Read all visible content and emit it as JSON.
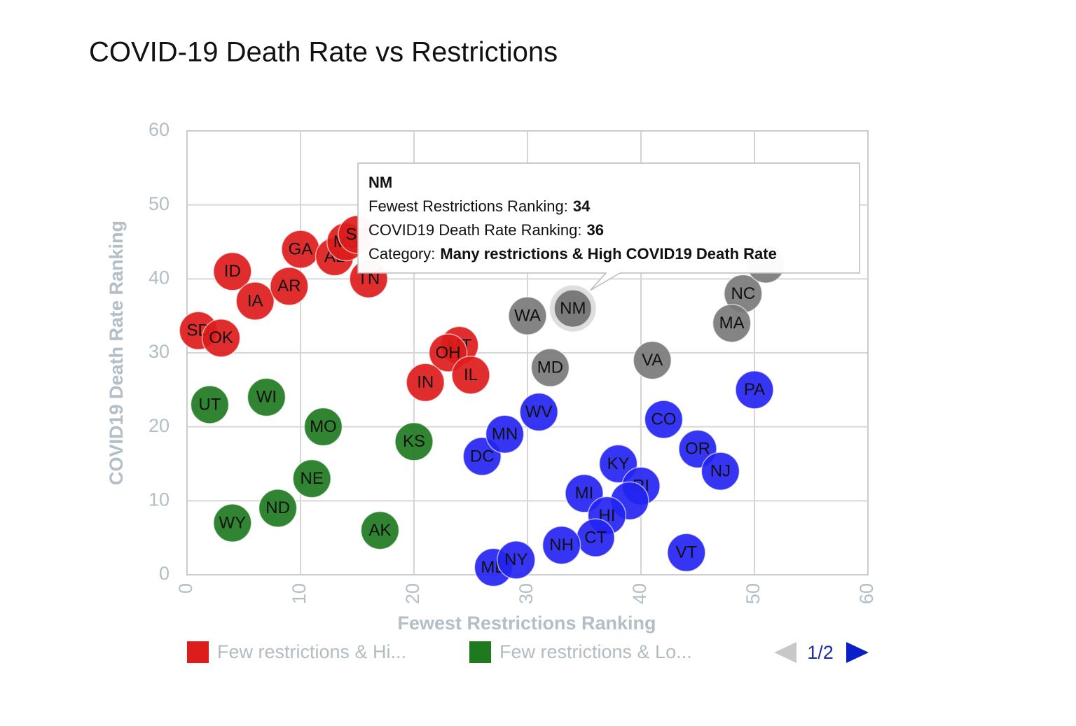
{
  "chart_data": {
    "type": "scatter",
    "title": "COVID-19 Death Rate vs Restrictions",
    "x_label": "Fewest Restrictions Ranking",
    "y_label": "COVID19 Death Rate Ranking",
    "xlim": [
      0,
      60
    ],
    "ylim": [
      0,
      60
    ],
    "xticks": [
      0,
      10,
      20,
      30,
      40,
      50,
      60
    ],
    "yticks": [
      0,
      10,
      20,
      30,
      40,
      50,
      60
    ],
    "grid": true,
    "series": [
      {
        "name": "Few restrictions & Hi...",
        "color": "#dd1c1c",
        "labels": [
          "SD",
          "OK",
          "ID",
          "IA",
          "AR",
          "GA",
          "AL",
          "MS",
          "SC",
          "TN",
          "MT",
          "OH",
          "IN",
          "IL"
        ],
        "x": [
          1,
          3,
          4,
          6,
          9,
          10,
          13,
          14,
          15,
          16,
          24,
          23,
          21,
          25
        ],
        "y": [
          33,
          32,
          41,
          37,
          39,
          44,
          43,
          45,
          46,
          40,
          31,
          30,
          26,
          27
        ]
      },
      {
        "name": "Few restrictions & Lo...",
        "color": "#1f7a1f",
        "labels": [
          "UT",
          "WI",
          "MO",
          "KS",
          "NE",
          "ND",
          "WY",
          "AK"
        ],
        "x": [
          2,
          7,
          12,
          20,
          11,
          8,
          4,
          17
        ],
        "y": [
          23,
          24,
          20,
          18,
          13,
          9,
          7,
          6
        ]
      },
      {
        "name": "Many restrictions & High COVID19 Death Rate",
        "color": "#7a7a7a",
        "labels": [
          "WA",
          "NM",
          "MD",
          "VA",
          "NC",
          "MA",
          null
        ],
        "x": [
          30,
          34,
          32,
          41,
          49,
          48,
          51
        ],
        "y": [
          35,
          36,
          28,
          29,
          38,
          34,
          42
        ]
      },
      {
        "name": null,
        "color": "#2424f2",
        "labels": [
          "PA",
          "CO",
          "OR",
          "NJ",
          "KY",
          "RI",
          null,
          "MI",
          "HI",
          "CT",
          "NH",
          "VT",
          "DC",
          "MN",
          "WV",
          "ME",
          "NY"
        ],
        "x": [
          50,
          42,
          45,
          47,
          38,
          40,
          39,
          35,
          37,
          36,
          33,
          44,
          26,
          28,
          31,
          27,
          29
        ],
        "y": [
          25,
          21,
          17,
          14,
          15,
          12,
          10,
          11,
          8,
          5,
          4,
          3,
          16,
          19,
          22,
          1,
          2
        ]
      }
    ],
    "legend_items": [
      0,
      1
    ],
    "legend_page": "1/2",
    "tooltip": {
      "series": 2,
      "point": 1,
      "x_text": "Fewest Restrictions Ranking:",
      "y_text": "COVID19 Death Rate Ranking:",
      "category_text": "Category:"
    }
  }
}
